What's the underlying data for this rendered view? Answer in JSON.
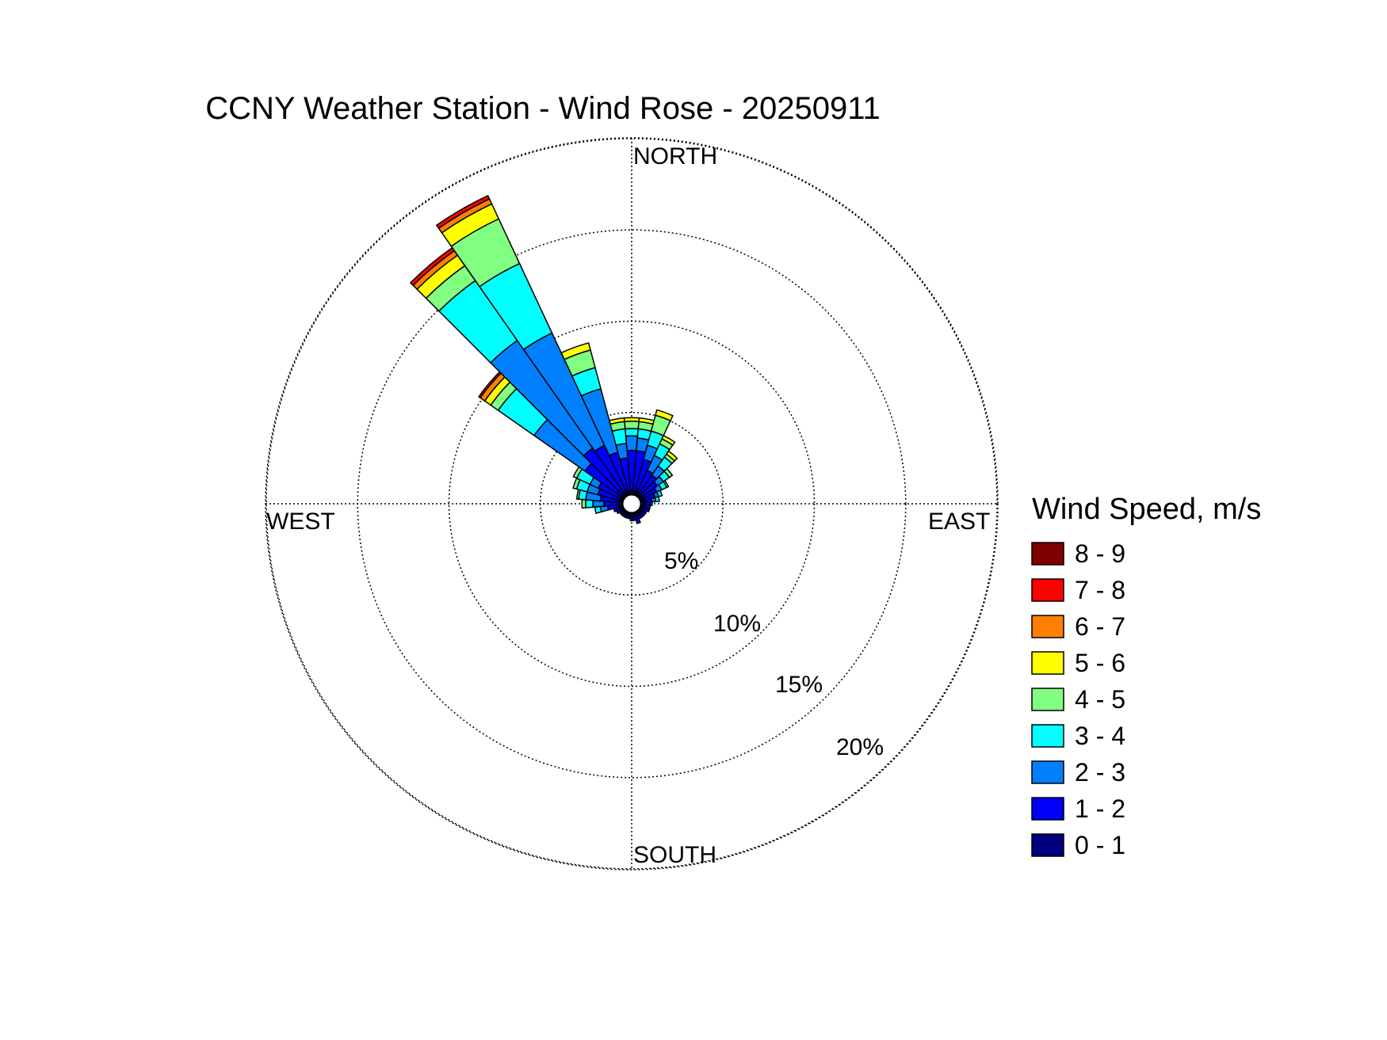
{
  "chart_data": {
    "type": "wind-rose",
    "title": "CCNY Weather Station - Wind Rose - 20250911",
    "direction_labels": {
      "north": "NORTH",
      "east": "EAST",
      "south": "SOUTH",
      "west": "WEST"
    },
    "radial_unit": "%",
    "radial_ticks": [
      5,
      10,
      15,
      20
    ],
    "radial_tick_labels": [
      "5%",
      "10%",
      "15%",
      "20%"
    ],
    "rlim": [
      0,
      20
    ],
    "grid": true,
    "legend": {
      "title": "Wind Speed, m/s",
      "placement": "right",
      "bins": [
        {
          "label": "8 - 9",
          "color": "#800000"
        },
        {
          "label": "7 - 8",
          "color": "#ff0000"
        },
        {
          "label": "6 - 7",
          "color": "#ff8000"
        },
        {
          "label": "5 - 6",
          "color": "#ffff00"
        },
        {
          "label": "4 - 5",
          "color": "#80ff80"
        },
        {
          "label": "3 - 4",
          "color": "#00ffff"
        },
        {
          "label": "2 - 3",
          "color": "#0080ff"
        },
        {
          "label": "1 - 2",
          "color": "#0000ff"
        },
        {
          "label": "0 - 1",
          "color": "#000080"
        }
      ]
    },
    "speed_bins_ascending": [
      "0 - 1",
      "1 - 2",
      "2 - 3",
      "3 - 4",
      "4 - 5",
      "5 - 6",
      "6 - 7",
      "7 - 8",
      "8 - 9"
    ],
    "sector_width_deg": 10,
    "sectors": [
      {
        "direction": 0,
        "cumulative_percent": [
          0.2,
          2.4,
          3.2,
          3.6,
          4.0,
          4.2
        ]
      },
      {
        "direction": 10,
        "cumulative_percent": [
          0.2,
          2.4,
          3.1,
          3.6,
          4.0,
          4.2
        ]
      },
      {
        "direction": 20,
        "cumulative_percent": [
          0.2,
          2.0,
          2.8,
          3.6,
          4.5,
          4.8
        ]
      },
      {
        "direction": 30,
        "cumulative_percent": [
          0.2,
          1.5,
          2.4,
          3.1,
          3.4,
          3.6
        ]
      },
      {
        "direction": 40,
        "cumulative_percent": [
          0.2,
          1.4,
          2.0,
          2.6,
          2.8,
          3.0
        ]
      },
      {
        "direction": 50,
        "cumulative_percent": [
          0.2,
          1.2,
          1.6,
          2.0,
          2.2
        ]
      },
      {
        "direction": 60,
        "cumulative_percent": [
          0.2,
          1.0,
          1.3,
          1.6,
          1.7
        ]
      },
      {
        "direction": 70,
        "cumulative_percent": [
          0.2,
          0.8,
          1.0,
          1.2
        ]
      },
      {
        "direction": 80,
        "cumulative_percent": [
          0.2,
          0.6,
          0.8,
          1.0
        ]
      },
      {
        "direction": 90,
        "cumulative_percent": [
          0.2,
          0.5,
          0.6
        ]
      },
      {
        "direction": 100,
        "cumulative_percent": [
          0.2,
          0.5
        ]
      },
      {
        "direction": 110,
        "cumulative_percent": [
          0.2,
          0.5
        ]
      },
      {
        "direction": 120,
        "cumulative_percent": [
          0.2,
          0.4
        ]
      },
      {
        "direction": 130,
        "cumulative_percent": [
          0.2,
          0.4
        ]
      },
      {
        "direction": 140,
        "cumulative_percent": [
          0.2,
          0.4
        ]
      },
      {
        "direction": 150,
        "cumulative_percent": [
          0.2,
          0.4
        ]
      },
      {
        "direction": 160,
        "cumulative_percent": [
          0.2,
          0.6
        ]
      },
      {
        "direction": 170,
        "cumulative_percent": [
          0.2,
          0.4
        ]
      },
      {
        "direction": 180,
        "cumulative_percent": [
          0.2,
          0.4
        ]
      },
      {
        "direction": 190,
        "cumulative_percent": [
          0.2,
          0.3
        ]
      },
      {
        "direction": 200,
        "cumulative_percent": [
          0.2,
          0.3
        ]
      },
      {
        "direction": 210,
        "cumulative_percent": [
          0.2,
          0.3
        ]
      },
      {
        "direction": 220,
        "cumulative_percent": [
          0.2,
          0.3
        ]
      },
      {
        "direction": 230,
        "cumulative_percent": [
          0.2,
          0.3
        ]
      },
      {
        "direction": 240,
        "cumulative_percent": [
          0.2,
          0.4
        ]
      },
      {
        "direction": 250,
        "cumulative_percent": [
          0.2,
          0.5
        ]
      },
      {
        "direction": 260,
        "cumulative_percent": [
          0.2,
          0.8,
          1.2,
          1.5
        ]
      },
      {
        "direction": 270,
        "cumulative_percent": [
          0.2,
          1.0,
          1.6,
          2.0,
          2.2
        ]
      },
      {
        "direction": 280,
        "cumulative_percent": [
          0.2,
          1.2,
          2.0,
          2.4,
          2.5
        ]
      },
      {
        "direction": 290,
        "cumulative_percent": [
          0.2,
          1.4,
          2.0,
          2.6,
          2.8
        ]
      },
      {
        "direction": 300,
        "cumulative_percent": [
          0.2,
          1.5,
          2.0,
          2.8,
          3.0
        ]
      },
      {
        "direction": 310,
        "cumulative_percent": [
          0.2,
          2.6,
          6.0,
          8.4,
          8.9,
          9.3,
          9.6,
          9.7
        ]
      },
      {
        "direction": 320,
        "cumulative_percent": [
          0.2,
          3.2,
          10.4,
          14.4,
          15.4,
          16.1,
          16.4,
          16.6
        ]
      },
      {
        "direction": 330,
        "cumulative_percent": [
          0.2,
          3.0,
          9.8,
          14.0,
          16.7,
          17.6,
          17.9,
          18.1
        ]
      },
      {
        "direction": 340,
        "cumulative_percent": [
          0.2,
          2.4,
          6.0,
          7.2,
          8.2,
          8.6
        ]
      },
      {
        "direction": 350,
        "cumulative_percent": [
          0.2,
          2.0,
          2.8,
          3.6,
          4.0,
          4.2
        ]
      }
    ]
  }
}
